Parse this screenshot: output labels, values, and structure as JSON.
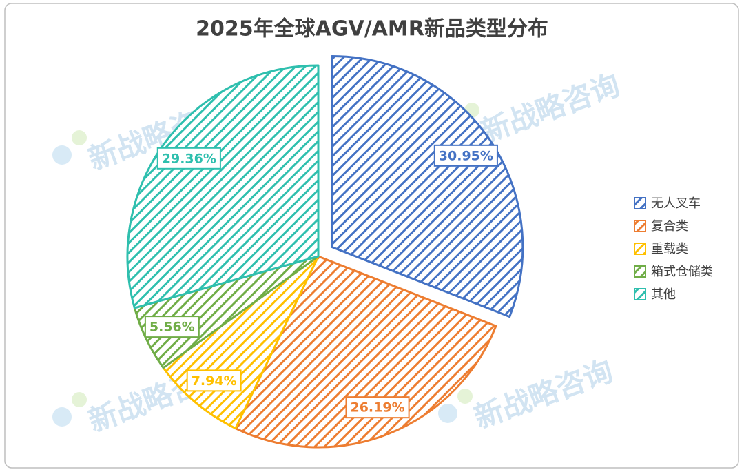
{
  "watermark": "新战略咨询",
  "chart_data": {
    "type": "pie",
    "title": "2025年全球AGV/AMR新品类型分布",
    "categories": [
      "无人叉车",
      "复合类",
      "重载类",
      "箱式仓储类",
      "其他"
    ],
    "values": [
      30.95,
      26.19,
      7.94,
      5.56,
      29.36
    ],
    "value_labels": [
      "30.95%",
      "26.19%",
      "7.94%",
      "5.56%",
      "29.36%"
    ],
    "colors": [
      "#4472c4",
      "#ed7d31",
      "#ffc000",
      "#70ad47",
      "#2fbfae"
    ],
    "hatch": true,
    "legend": "right"
  }
}
